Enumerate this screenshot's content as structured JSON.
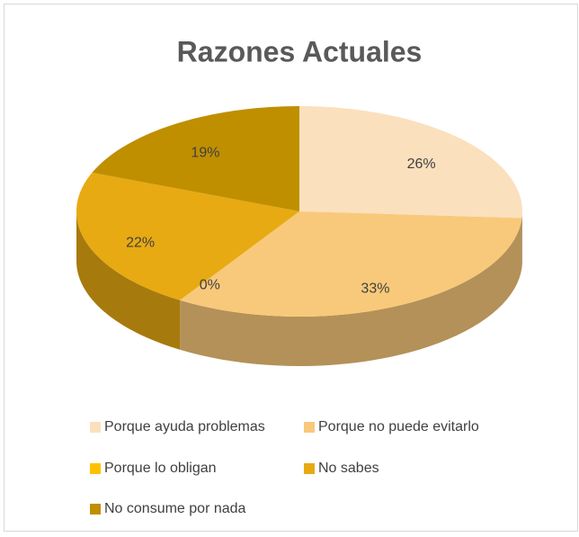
{
  "chart_data": {
    "type": "pie",
    "title": "Razones Actuales",
    "categories": [
      "Porque ayuda problemas",
      "Porque no puede evitarlo",
      "Porque lo obligan",
      "No sabes",
      "No consume por nada"
    ],
    "values": [
      26,
      33,
      0,
      22,
      19
    ],
    "value_labels": [
      "26%",
      "33%",
      "0%",
      "22%",
      "19%"
    ],
    "colors": [
      "#fbe0bd",
      "#f8c97a",
      "#ffc000",
      "#e8aa12",
      "#bf8f00"
    ]
  }
}
